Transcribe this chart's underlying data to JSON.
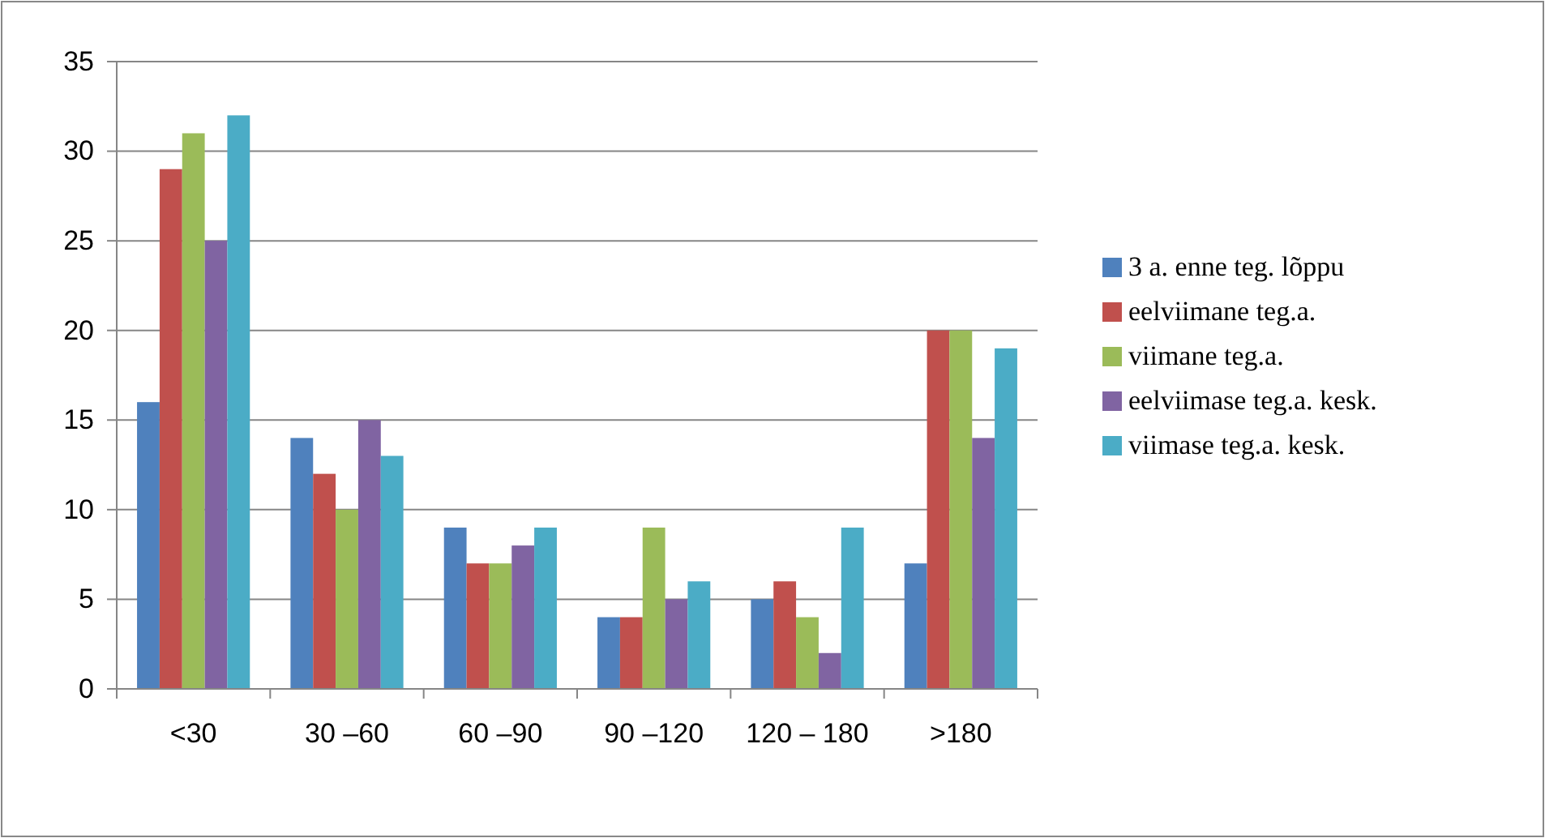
{
  "chart_data": {
    "type": "bar",
    "categories": [
      "<30",
      "30 –60",
      "60 –90",
      "90 –120",
      "120 – 180",
      ">180"
    ],
    "series": [
      {
        "name": "3 a. enne teg. lõppu",
        "color": "#4f81bd",
        "values": [
          16,
          14,
          9,
          4,
          5,
          7
        ]
      },
      {
        "name": "eelviimane teg.a.",
        "color": "#c0504d",
        "values": [
          29,
          12,
          7,
          4,
          6,
          20
        ]
      },
      {
        "name": "viimane teg.a.",
        "color": "#9bbb59",
        "values": [
          31,
          10,
          7,
          9,
          4,
          20
        ]
      },
      {
        "name": "eelviimase teg.a. kesk.",
        "color": "#8064a2",
        "values": [
          25,
          15,
          8,
          5,
          2,
          14
        ]
      },
      {
        "name": "viimase teg.a. kesk.",
        "color": "#4bacc6",
        "values": [
          32,
          13,
          9,
          6,
          9,
          19
        ]
      }
    ],
    "ylim": [
      0,
      35
    ],
    "yticks": [
      0,
      5,
      10,
      15,
      20,
      25,
      30,
      35
    ],
    "grid": "y",
    "legend": "right"
  }
}
